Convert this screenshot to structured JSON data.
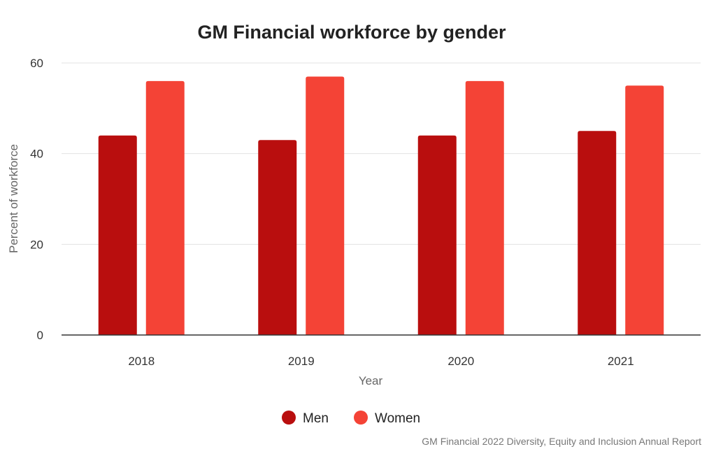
{
  "chart_data": {
    "type": "bar",
    "title": "GM Financial workforce by gender",
    "xlabel": "Year",
    "ylabel": "Percent of workforce",
    "categories": [
      "2018",
      "2019",
      "2020",
      "2021"
    ],
    "ylim": [
      0,
      60
    ],
    "yticks": [
      "0",
      "20",
      "40",
      "60"
    ],
    "grid": true,
    "legend_position": "bottom",
    "series": [
      {
        "name": "Men",
        "values": [
          44,
          43,
          44,
          45
        ],
        "color": "#b90e0e"
      },
      {
        "name": "Women",
        "values": [
          56,
          57,
          56,
          55
        ],
        "color": "#f44336"
      }
    ]
  },
  "source": "GM Financial 2022 Diversity, Equity and Inclusion Annual Report"
}
